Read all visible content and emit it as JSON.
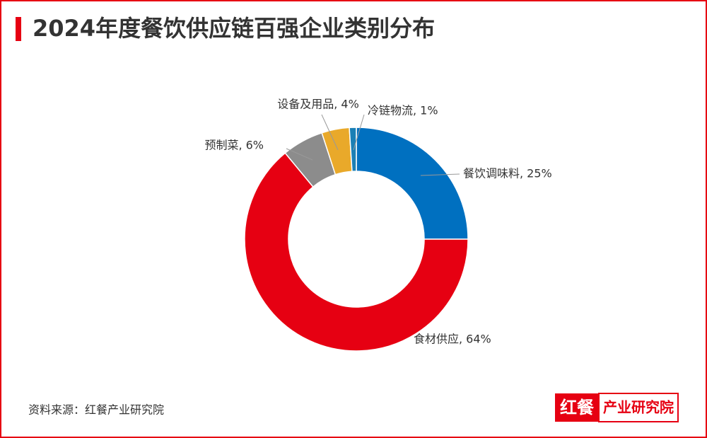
{
  "chart_data": {
    "type": "donut",
    "title": "2024年度餐饮供应链百强企业类别分布",
    "labels": [
      "餐饮调味料, 25%",
      "食材供应, 64%",
      "预制菜, 6%",
      "设备及用品, 4%",
      "冷链物流, 1%"
    ],
    "values": [
      25,
      64,
      6,
      4,
      1
    ],
    "colors": [
      "#0070c0",
      "#e60012",
      "#8c8c8c",
      "#e9a92a",
      "#1a7fb5"
    ],
    "source": "资料来源：红餐产业研究院",
    "logo": {
      "left": "红餐",
      "right": "产业研究院"
    }
  }
}
